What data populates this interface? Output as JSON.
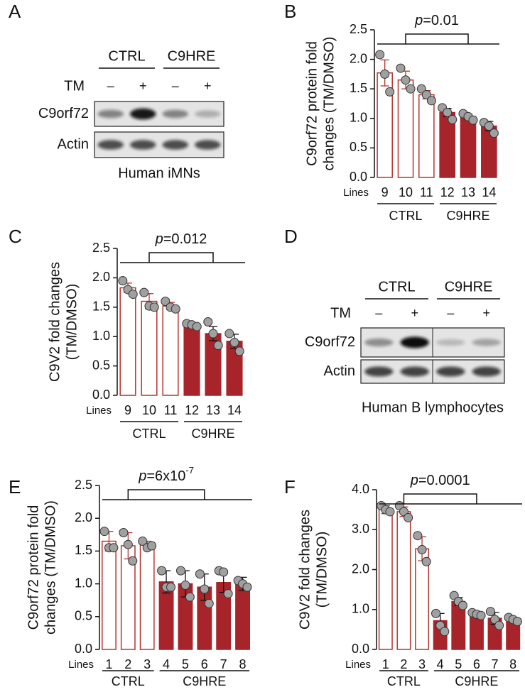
{
  "blots": [
    {
      "panel": "A",
      "groups": [
        "CTRL",
        "C9HRE"
      ],
      "treatment_label": "TM",
      "treatment_marks": [
        "–",
        "+",
        "–",
        "+"
      ],
      "rows": [
        "C9orf72",
        "Actin"
      ],
      "caption": "Human iMNs"
    },
    {
      "panel": "D",
      "groups": [
        "CTRL",
        "C9HRE"
      ],
      "treatment_label": "TM",
      "treatment_marks": [
        "–",
        "+",
        "–",
        "+"
      ],
      "rows": [
        "C9orf72",
        "Actin"
      ],
      "caption": "Human B lymphocytes"
    }
  ],
  "chart_data": [
    {
      "type": "bar",
      "panel": "B",
      "ylabel": [
        "C9orf72 protein fold",
        "changes (TM/DMSO)"
      ],
      "annotation": {
        "italic": "p",
        "text": "=0.01"
      },
      "xlabel": "Lines",
      "categories": [
        "9",
        "10",
        "11",
        "12",
        "13",
        "14"
      ],
      "ylim": [
        0,
        2.5
      ],
      "yticks": [
        {
          "value": 0,
          "label": "0.0"
        },
        0.5,
        {
          "value": 1,
          "label": "1.0"
        },
        1.5,
        {
          "value": 2,
          "label": "2.0"
        },
        2.5
      ],
      "point_color": "#a0a0a0",
      "series": [
        {
          "name": "CTRL",
          "color": "#b5342f",
          "fill": "#ffffff",
          "values": [
            1.77,
            1.65,
            1.4,
            null,
            null,
            null
          ],
          "errors": [
            0.22,
            0.15,
            0.07,
            null,
            null,
            null
          ],
          "points": [
            [
              2.08,
              1.75,
              1.45
            ],
            [
              1.85,
              1.65,
              1.5
            ],
            [
              1.5,
              1.4,
              1.3
            ],
            null,
            null,
            null
          ]
        },
        {
          "name": "C9HRE",
          "color": "#a8242b",
          "fill": "#a8242b",
          "values": [
            null,
            null,
            null,
            1.1,
            1.03,
            0.87
          ],
          "errors": [
            null,
            null,
            null,
            0.07,
            0.04,
            0.08
          ],
          "points": [
            null,
            null,
            null,
            [
              1.18,
              1.1,
              0.98
            ],
            [
              1.08,
              1.03,
              0.97
            ],
            [
              0.93,
              0.87,
              0.75
            ]
          ]
        }
      ]
    },
    {
      "type": "bar",
      "panel": "C",
      "ylabel": [
        "C9V2 fold changes",
        "(TM/DMSO)"
      ],
      "annotation": {
        "italic": "p",
        "text": "=0.012"
      },
      "xlabel": "Lines",
      "categories": [
        "9",
        "10",
        "11",
        "12",
        "13",
        "14"
      ],
      "ylim": [
        0,
        2.5
      ],
      "yticks": [
        {
          "value": 0,
          "label": "0.0"
        },
        0.5,
        {
          "value": 1,
          "label": "1.0"
        },
        1.5,
        {
          "value": 2,
          "label": "2.0"
        },
        2.5
      ],
      "point_color": "#a0a0a0",
      "series": [
        {
          "name": "CTRL",
          "color": "#b5342f",
          "fill": "#ffffff",
          "values": [
            1.83,
            1.6,
            1.52,
            null,
            null,
            null
          ],
          "errors": [
            0.08,
            0.13,
            0.06,
            null,
            null,
            null
          ],
          "points": [
            [
              1.95,
              1.8,
              1.72
            ],
            [
              1.75,
              1.52,
              1.5
            ],
            [
              1.6,
              1.5,
              1.47
            ],
            null,
            null,
            null
          ]
        },
        {
          "name": "C9HRE",
          "color": "#a8242b",
          "fill": "#a8242b",
          "values": [
            null,
            null,
            null,
            1.2,
            1.05,
            0.92
          ],
          "errors": [
            null,
            null,
            null,
            0.03,
            0.12,
            0.12
          ],
          "points": [
            null,
            null,
            null,
            [
              1.22,
              1.2,
              1.17
            ],
            [
              1.25,
              1.05,
              0.85
            ],
            [
              1.05,
              0.9,
              0.75
            ]
          ]
        }
      ]
    },
    {
      "type": "bar",
      "panel": "E",
      "ylabel": [
        "C9orf72 protein fold",
        "changes (TM/DMSO)"
      ],
      "annotation": {
        "italic": "p",
        "text": "=6x10",
        "superscript": "-7"
      },
      "xlabel": "Lines",
      "categories": [
        "1",
        "2",
        "3",
        "4",
        "5",
        "6",
        "7",
        "8"
      ],
      "ylim": [
        0,
        2.5
      ],
      "yticks": [
        {
          "value": 0,
          "label": "0.0"
        },
        0.5,
        {
          "value": 1,
          "label": "1.0"
        },
        1.5,
        {
          "value": 2,
          "label": "2.0"
        },
        2.5
      ],
      "point_color": "#a0a0a0",
      "series": [
        {
          "name": "CTRL",
          "color": "#b5342f",
          "fill": "#ffffff",
          "values": [
            1.65,
            1.58,
            1.6,
            null,
            null,
            null,
            null,
            null
          ],
          "errors": [
            0.15,
            0.2,
            0.05,
            null,
            null,
            null,
            null,
            null
          ],
          "points": [
            [
              1.8,
              1.55,
              1.55
            ],
            [
              1.78,
              1.6,
              1.35
            ],
            [
              1.65,
              1.55,
              1.58
            ],
            null,
            null,
            null,
            null,
            null
          ]
        },
        {
          "name": "C9HRE",
          "color": "#a8242b",
          "fill": "#a8242b",
          "values": [
            null,
            null,
            null,
            1.03,
            1.0,
            0.95,
            1.02,
            1.0
          ],
          "errors": [
            null,
            null,
            null,
            0.17,
            0.2,
            0.2,
            0.15,
            0.1
          ],
          "points": [
            null,
            null,
            null,
            [
              1.2,
              0.95,
              0.95
            ],
            [
              1.2,
              0.98,
              0.8
            ],
            [
              1.15,
              0.92,
              0.7
            ],
            [
              1.2,
              1.18,
              0.85
            ],
            [
              1.05,
              1.0,
              0.95
            ]
          ]
        }
      ]
    },
    {
      "type": "bar",
      "panel": "F",
      "ylabel": [
        "C9V2 fold changes",
        "(TM/DMSO)"
      ],
      "annotation": {
        "italic": "p",
        "text": "=0.0001"
      },
      "xlabel": "Lines",
      "categories": [
        "1",
        "2",
        "3",
        "4",
        "5",
        "6",
        "7",
        "8"
      ],
      "ylim": [
        0,
        4
      ],
      "yticks": [
        {
          "value": 0,
          "label": "0.0"
        },
        {
          "value": 1,
          "label": "1.0"
        },
        {
          "value": 2,
          "label": "2.0"
        },
        {
          "value": 3,
          "label": "3.0"
        },
        {
          "value": 4,
          "label": "4.0"
        }
      ],
      "point_color": "#a0a0a0",
      "series": [
        {
          "name": "CTRL",
          "color": "#b5342f",
          "fill": "#ffffff",
          "values": [
            3.5,
            3.45,
            2.52,
            null,
            null,
            null,
            null,
            null
          ],
          "errors": [
            0.1,
            0.12,
            0.3,
            null,
            null,
            null,
            null,
            null
          ],
          "points": [
            [
              3.6,
              3.5,
              3.45
            ],
            [
              3.6,
              3.45,
              3.3
            ],
            [
              2.85,
              2.5,
              2.2
            ],
            null,
            null,
            null,
            null,
            null
          ]
        },
        {
          "name": "C9HRE",
          "color": "#a8242b",
          "fill": "#a8242b",
          "values": [
            null,
            null,
            null,
            0.72,
            1.2,
            0.88,
            0.78,
            0.75
          ],
          "errors": [
            null,
            null,
            null,
            0.18,
            0.1,
            0.04,
            0.15,
            0.05
          ],
          "points": [
            null,
            null,
            null,
            [
              0.9,
              0.6,
              0.45
            ],
            [
              1.35,
              1.2,
              1.1
            ],
            [
              0.92,
              0.88,
              0.85
            ],
            [
              0.95,
              0.75,
              0.6
            ],
            [
              0.8,
              0.75,
              0.7
            ]
          ]
        }
      ]
    }
  ]
}
